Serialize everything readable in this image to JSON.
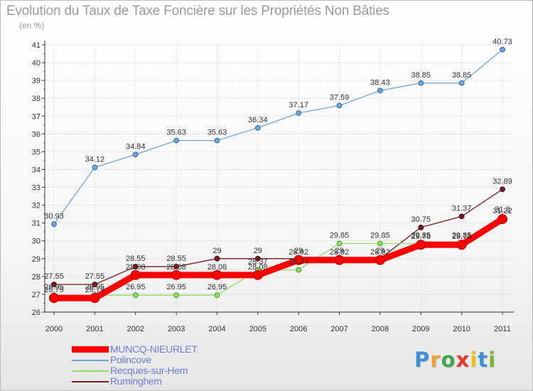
{
  "colors": {
    "background": "#ffffff",
    "title": "#9b9b9b",
    "legend_text": "#6a7bd8",
    "grid": "#d9d9d9",
    "axis": "#333333"
  },
  "brand": {
    "letters": [
      "P",
      "r",
      "o",
      "x",
      "i",
      "t",
      "i"
    ],
    "colors": [
      "#3d8fd8",
      "#f0a030",
      "#3aa84a",
      "#e23a2a",
      "#f0c020",
      "#3d8fd8",
      "#7ab630"
    ]
  },
  "chart_data": {
    "type": "line",
    "title": "Evolution du Taux de Taxe Foncière sur les Propriétés Non Bâties",
    "ylabel": "(en %)",
    "xlabel": "",
    "x": [
      "2000",
      "2001",
      "2002",
      "2003",
      "2004",
      "2005",
      "2006",
      "2007",
      "2008",
      "2009",
      "2010",
      "2011"
    ],
    "ylim": [
      26,
      41
    ],
    "yticks": [
      "26",
      "27",
      "28",
      "29",
      "30",
      "31",
      "32",
      "33",
      "34",
      "35",
      "36",
      "37",
      "38",
      "39",
      "40",
      "41"
    ],
    "grid": true,
    "legend_position": "bottom-left",
    "series": [
      {
        "name": "MUNCQ-NIEURLET",
        "color": "#ff0000",
        "style": "thick",
        "values": [
          26.79,
          26.79,
          28.08,
          28.08,
          28.08,
          28.08,
          28.92,
          28.92,
          28.92,
          29.78,
          29.78,
          31.22
        ],
        "labels": [
          "26.79",
          "26.79",
          "28.08",
          "28.08",
          "28.08",
          "28.08",
          "28.92",
          "28.92",
          "28.92",
          "29.78",
          "29.78",
          "31.22"
        ]
      },
      {
        "name": "Polincove",
        "color": "#6ea6d6",
        "style": "thin",
        "values": [
          30.93,
          34.12,
          34.84,
          35.63,
          35.63,
          36.34,
          37.17,
          37.59,
          38.43,
          38.85,
          38.85,
          40.73
        ],
        "labels": [
          "30.93",
          "34.12",
          "34.84",
          "35.63",
          "35.63",
          "36.34",
          "37.17",
          "37.59",
          "38.43",
          "38.85",
          "38.85",
          "40.73"
        ]
      },
      {
        "name": "Recques-sur-Hem",
        "color": "#90e060",
        "style": "thin",
        "values": [
          26.95,
          26.95,
          26.95,
          26.95,
          26.95,
          28.37,
          28.37,
          29.85,
          29.85,
          29.85,
          29.85,
          31.3
        ],
        "labels": [
          "26.95",
          "26.95",
          "26.95",
          "26.95",
          "26.95",
          "28.37",
          "28.37",
          "29.85",
          "29.85",
          "29.85",
          "29.85",
          "31.3"
        ]
      },
      {
        "name": "Ruminghem",
        "color": "#7a1a22",
        "style": "thin",
        "values": [
          27.55,
          27.55,
          28.55,
          28.55,
          29,
          29,
          29,
          29,
          29,
          30.75,
          31.37,
          32.89
        ],
        "labels": [
          "27.55",
          "27.55",
          "28.55",
          "28.55",
          "29",
          "29",
          "29",
          "29",
          "29",
          "30.75",
          "31.37",
          "32.89"
        ]
      }
    ]
  }
}
